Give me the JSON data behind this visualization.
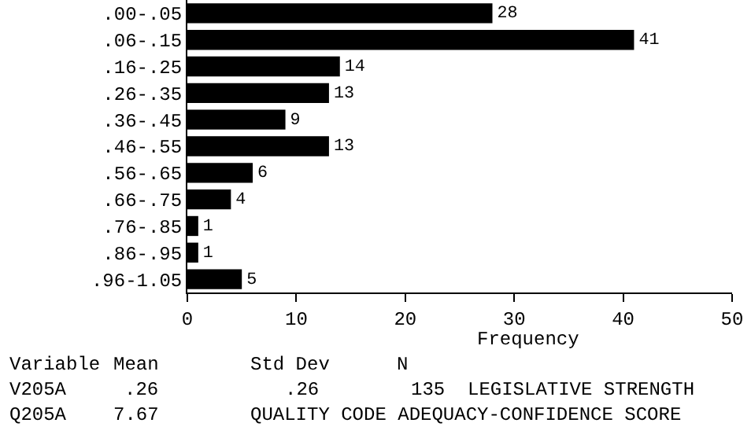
{
  "chart_data": {
    "type": "bar",
    "orientation": "horizontal",
    "categories": [
      ".00-.05",
      ".06-.15",
      ".16-.25",
      ".26-.35",
      ".36-.45",
      ".46-.55",
      ".56-.65",
      ".66-.75",
      ".76-.85",
      ".86-.95",
      ".96-1.05"
    ],
    "values": [
      28,
      41,
      14,
      13,
      9,
      13,
      6,
      4,
      1,
      1,
      5
    ],
    "color": "#000000",
    "data_labels": true,
    "xlim": [
      0,
      50
    ],
    "xticks": [
      0,
      10,
      20,
      30,
      40,
      50
    ],
    "xlabel": "Frequency",
    "grid": false,
    "legend": false,
    "annotations": [
      "Variable",
      "Mean",
      "Std Dev",
      "N",
      "V205A",
      ".26",
      ".26",
      "135",
      "LEGISLATIVE STRENGTH",
      "Q205A",
      "7.67",
      "QUALITY CODE ADEQUACY-CONFIDENCE SCORE"
    ]
  }
}
